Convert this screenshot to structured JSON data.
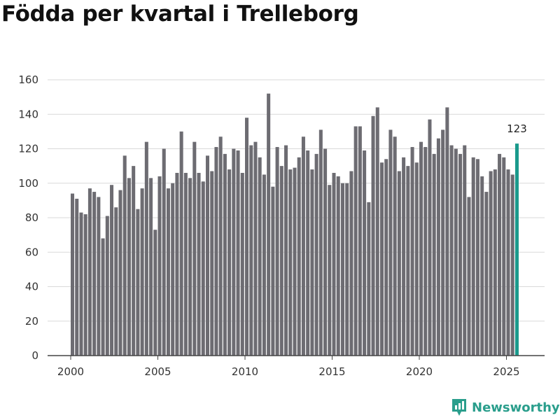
{
  "chart_data": {
    "type": "bar",
    "title": "Födda per kvartal i Trelleborg",
    "xlabel": "",
    "ylabel": "",
    "ylim": [
      0,
      160
    ],
    "yticks": [
      0,
      20,
      40,
      60,
      80,
      100,
      120,
      140,
      160
    ],
    "xticks": [
      2000,
      2005,
      2010,
      2015,
      2020,
      2025
    ],
    "x_start": 2000,
    "x_step": 0.25,
    "grid": true,
    "bar_color": "#6d6c72",
    "highlight_color": "#1a9a8c",
    "highlight_index": 102,
    "highlight_label": "123",
    "values": [
      94,
      91,
      83,
      82,
      97,
      95,
      92,
      68,
      81,
      99,
      86,
      96,
      116,
      103,
      110,
      85,
      97,
      124,
      103,
      73,
      104,
      120,
      97,
      100,
      106,
      130,
      106,
      103,
      124,
      106,
      101,
      116,
      107,
      121,
      127,
      117,
      108,
      120,
      119,
      106,
      138,
      122,
      124,
      115,
      105,
      152,
      98,
      121,
      110,
      122,
      108,
      109,
      115,
      127,
      119,
      108,
      117,
      131,
      120,
      99,
      106,
      104,
      100,
      100,
      107,
      133,
      133,
      119,
      89,
      139,
      144,
      112,
      114,
      131,
      127,
      107,
      115,
      110,
      121,
      112,
      124,
      121,
      137,
      117,
      126,
      131,
      144,
      122,
      120,
      117,
      122,
      92,
      115,
      114,
      104,
      95,
      107,
      108,
      117,
      115,
      108,
      105,
      123
    ]
  },
  "logo": {
    "text": "Newsworthy"
  }
}
